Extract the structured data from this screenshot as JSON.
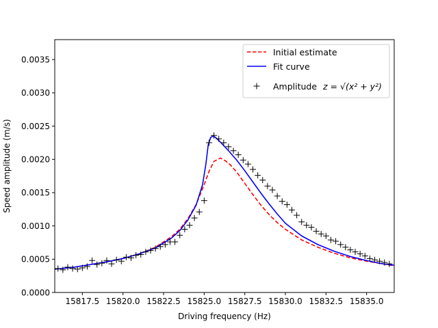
{
  "chart_data": {
    "type": "line",
    "title": "",
    "xlabel": "Driving frequency (Hz)",
    "ylabel": "Speed amplitude (m/s)",
    "xlim": [
      15815.8,
      15836.7
    ],
    "ylim": [
      0,
      0.0038
    ],
    "xticks": [
      15817.5,
      15820.0,
      15822.5,
      15825.0,
      15827.5,
      15830.0,
      15832.5,
      15835.0
    ],
    "xtick_labels": [
      "15817.5",
      "15820.0",
      "15822.5",
      "15825.0",
      "15827.5",
      "15830.0",
      "15832.5",
      "15835.0"
    ],
    "yticks": [
      0,
      0.0005,
      0.001,
      0.0015,
      0.002,
      0.0025,
      0.003,
      0.0035
    ],
    "ytick_labels": [
      "0.0000",
      "0.0005",
      "0.0010",
      "0.0015",
      "0.0020",
      "0.0025",
      "0.0030",
      "0.0035"
    ],
    "grid": false,
    "legend_position": "top-right",
    "series": [
      {
        "name": "Initial estimate",
        "style": "dashed",
        "color": "#ff0000",
        "x": [
          15815.8,
          15817.0,
          15818.0,
          15819.0,
          15820.0,
          15821.0,
          15822.0,
          15823.0,
          15823.5,
          15824.0,
          15824.5,
          15825.0,
          15825.3,
          15825.6,
          15826.0,
          15826.3,
          15826.6,
          15827.0,
          15827.5,
          15828.0,
          15828.5,
          15829.0,
          15829.5,
          15830.0,
          15831.0,
          15832.0,
          15833.0,
          15834.0,
          15835.0,
          15836.0,
          15836.7
        ],
        "y": [
          0.00035,
          0.00038,
          0.00042,
          0.00046,
          0.00051,
          0.00058,
          0.00068,
          0.00084,
          0.00095,
          0.00111,
          0.00132,
          0.00162,
          0.00182,
          0.00197,
          0.00202,
          0.00198,
          0.00192,
          0.00181,
          0.00164,
          0.00147,
          0.00131,
          0.00117,
          0.00105,
          0.00095,
          0.00079,
          0.00068,
          0.00059,
          0.00052,
          0.00047,
          0.00043,
          0.0004
        ]
      },
      {
        "name": "Fit curve",
        "style": "solid",
        "color": "#0000ff",
        "x": [
          15815.8,
          15817.0,
          15818.0,
          15819.0,
          15820.0,
          15821.0,
          15822.0,
          15823.0,
          15823.5,
          15824.0,
          15824.5,
          15824.9,
          15825.1,
          15825.25,
          15825.4,
          15825.55,
          15825.7,
          15826.0,
          15826.5,
          15827.0,
          15827.5,
          15828.0,
          15828.5,
          15829.0,
          15829.5,
          15830.0,
          15831.0,
          15832.0,
          15833.0,
          15834.0,
          15835.0,
          15836.0,
          15836.7
        ],
        "y": [
          0.00035,
          0.00038,
          0.00042,
          0.00046,
          0.00051,
          0.00058,
          0.00067,
          0.00082,
          0.00093,
          0.00109,
          0.00131,
          0.00162,
          0.00192,
          0.00222,
          0.00233,
          0.00235,
          0.00233,
          0.00226,
          0.00213,
          0.00199,
          0.00183,
          0.00166,
          0.00149,
          0.00133,
          0.00118,
          0.00104,
          0.00085,
          0.00072,
          0.00062,
          0.00054,
          0.00048,
          0.00043,
          0.00041
        ]
      },
      {
        "name": "Amplitude",
        "legend_math": "z = √(x² + y²)",
        "style": "marker-plus",
        "color": "#000000",
        "x": [
          15816.0,
          15816.3,
          15816.6,
          15816.9,
          15817.2,
          15817.5,
          15817.8,
          15818.1,
          15818.4,
          15818.7,
          15819.0,
          15819.3,
          15819.6,
          15819.9,
          15820.2,
          15820.5,
          15820.8,
          15821.1,
          15821.4,
          15821.7,
          15822.0,
          15822.3,
          15822.6,
          15822.9,
          15823.2,
          15823.5,
          15823.8,
          15824.1,
          15824.4,
          15824.7,
          15825.0,
          15825.3,
          15825.6,
          15825.9,
          15826.2,
          15826.5,
          15826.8,
          15827.1,
          15827.4,
          15827.7,
          15828.0,
          15828.3,
          15828.6,
          15828.9,
          15829.2,
          15829.5,
          15829.8,
          15830.1,
          15830.4,
          15830.7,
          15831.0,
          15831.3,
          15831.6,
          15831.9,
          15832.2,
          15832.5,
          15832.8,
          15833.1,
          15833.4,
          15833.7,
          15834.0,
          15834.3,
          15834.6,
          15834.9,
          15835.2,
          15835.5,
          15835.8,
          15836.1,
          15836.4
        ],
        "y": [
          0.00036,
          0.00034,
          0.00038,
          0.00036,
          0.00035,
          0.00037,
          0.00039,
          0.00048,
          0.00042,
          0.00044,
          0.00048,
          0.00043,
          0.00049,
          0.00047,
          0.00053,
          0.00052,
          0.00056,
          0.00057,
          0.00061,
          0.00063,
          0.00066,
          0.00069,
          0.00072,
          0.00076,
          0.00076,
          0.00086,
          0.00095,
          0.00101,
          0.00112,
          0.00121,
          0.00138,
          0.00225,
          0.00236,
          0.00231,
          0.00225,
          0.00219,
          0.00213,
          0.00207,
          0.00199,
          0.00193,
          0.00185,
          0.00176,
          0.00169,
          0.0016,
          0.00154,
          0.00145,
          0.00137,
          0.00132,
          0.00124,
          0.00116,
          0.00106,
          0.00101,
          0.00098,
          0.00092,
          0.00088,
          0.00085,
          0.00079,
          0.00077,
          0.00072,
          0.00068,
          0.00064,
          0.00061,
          0.00058,
          0.00055,
          0.00051,
          0.00049,
          0.00047,
          0.00045,
          0.00043
        ]
      }
    ]
  }
}
